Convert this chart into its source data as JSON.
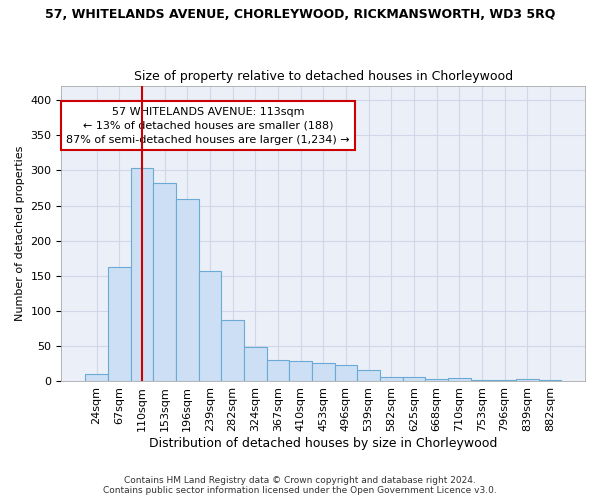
{
  "title1": "57, WHITELANDS AVENUE, CHORLEYWOOD, RICKMANSWORTH, WD3 5RQ",
  "title2": "Size of property relative to detached houses in Chorleywood",
  "xlabel": "Distribution of detached houses by size in Chorleywood",
  "ylabel": "Number of detached properties",
  "bar_color": "#ccdff5",
  "bar_edge_color": "#6aaad4",
  "categories": [
    "24sqm",
    "67sqm",
    "110sqm",
    "153sqm",
    "196sqm",
    "239sqm",
    "282sqm",
    "324sqm",
    "367sqm",
    "410sqm",
    "453sqm",
    "496sqm",
    "539sqm",
    "582sqm",
    "625sqm",
    "668sqm",
    "710sqm",
    "753sqm",
    "796sqm",
    "839sqm",
    "882sqm"
  ],
  "values": [
    10,
    163,
    303,
    282,
    259,
    157,
    88,
    49,
    31,
    29,
    26,
    23,
    16,
    7,
    6,
    3,
    5,
    2,
    2,
    4,
    2
  ],
  "annotation_text": "57 WHITELANDS AVENUE: 113sqm\n← 13% of detached houses are smaller (188)\n87% of semi-detached houses are larger (1,234) →",
  "annotation_box_color": "#ffffff",
  "annotation_box_edge_color": "#cc0000",
  "vline_color": "#cc0000",
  "vline_x_index": 2,
  "footer1": "Contains HM Land Registry data © Crown copyright and database right 2024.",
  "footer2": "Contains public sector information licensed under the Open Government Licence v3.0.",
  "ylim": [
    0,
    420
  ],
  "yticks": [
    0,
    50,
    100,
    150,
    200,
    250,
    300,
    350,
    400
  ],
  "grid_color": "#d0d8e8",
  "background_color": "#eaeff8",
  "title1_fontsize": 9,
  "title2_fontsize": 9,
  "xlabel_fontsize": 9,
  "ylabel_fontsize": 8,
  "tick_fontsize": 8,
  "annot_fontsize": 8,
  "footer_fontsize": 6.5
}
